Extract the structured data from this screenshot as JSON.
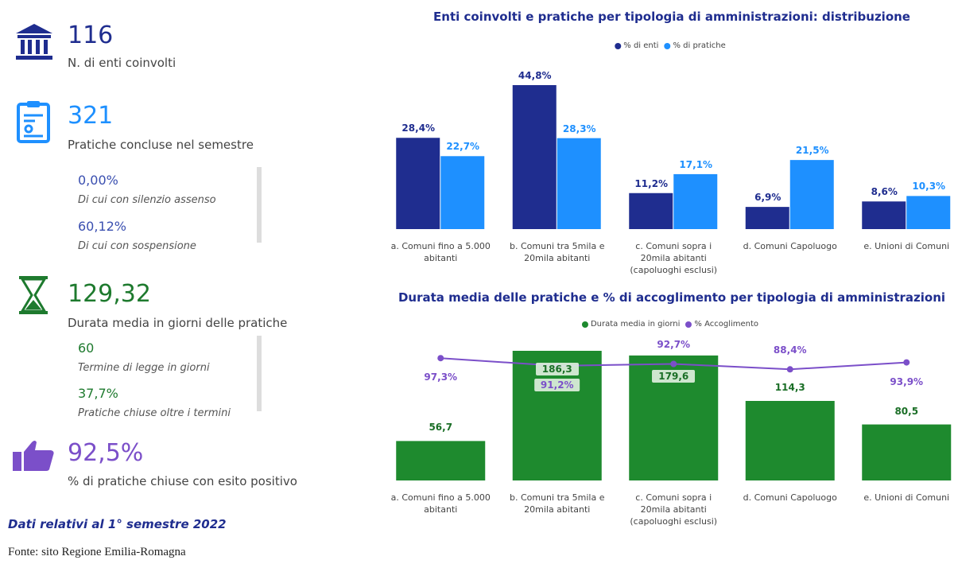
{
  "kpis": [
    {
      "value": "116",
      "label": "N. di enti coinvolti"
    },
    {
      "value": "321",
      "label": "Pratiche concluse nel semestre",
      "details": [
        {
          "value": "0,00%",
          "label": "Di cui con silenzio assenso"
        },
        {
          "value": "60,12%",
          "label": "Di cui con sospensione"
        }
      ]
    },
    {
      "value": "129,32",
      "label": "Durata media in giorni delle pratiche",
      "details": [
        {
          "value": "60",
          "label": "Termine di legge in giorni"
        },
        {
          "value": "37,7%",
          "label": "Pratiche chiuse oltre i termini"
        }
      ]
    },
    {
      "value": "92,5%",
      "label": "% di pratiche chiuse con esito positivo"
    }
  ],
  "footnote": "Dati relativi al 1° semestre 2022",
  "source": "Fonte: sito Regione Emilia-Romagna",
  "chart_data": [
    {
      "type": "bar",
      "title": "Enti coinvolti e pratiche per tipologia di amministrazioni: distribuzione",
      "categories": [
        "a. Comuni fino a 5.000 abitanti",
        "b. Comuni tra 5mila e 20mila abitanti",
        "c. Comuni sopra i 20mila abitanti (capoluoghi esclusi)",
        "d. Comuni Capoluogo",
        "e. Unioni di Comuni"
      ],
      "series": [
        {
          "name": "% di enti",
          "color": "#1f2d8f",
          "values": [
            28.4,
            44.8,
            11.2,
            6.9,
            8.6
          ],
          "value_labels": [
            "28,4%",
            "44,8%",
            "11,2%",
            "6,9%",
            "8,6%"
          ]
        },
        {
          "name": "% di pratiche",
          "color": "#1e90ff",
          "values": [
            22.7,
            28.3,
            17.1,
            21.5,
            10.3
          ],
          "value_labels": [
            "22,7%",
            "28,3%",
            "17,1%",
            "21,5%",
            "10,3%"
          ]
        }
      ]
    },
    {
      "type": "combo",
      "title": "Durata media delle pratiche e % di accoglimento per tipologia di amministrazioni",
      "categories": [
        "a. Comuni fino a 5.000 abitanti",
        "b. Comuni tra 5mila e 20mila abitanti",
        "c. Comuni sopra i 20mila abitanti (capoluoghi esclusi)",
        "d. Comuni Capoluogo",
        "e. Unioni di Comuni"
      ],
      "series": [
        {
          "name": "Durata media in giorni",
          "color": "#1e8a2e",
          "values": [
            56.7,
            186.3,
            179.6,
            114.3,
            80.5
          ],
          "value_labels": [
            "56,7",
            "186,3",
            "179,6",
            "114,3",
            "80,5"
          ]
        },
        {
          "name": "% Accoglimento",
          "color": "#7b4fc9",
          "axis": "y2",
          "values": [
            97.3,
            91.2,
            92.7,
            88.4,
            93.9
          ],
          "value_labels": [
            "97,3%",
            "91,2%",
            "92,7%",
            "88,4%",
            "93,9%"
          ]
        }
      ]
    }
  ]
}
